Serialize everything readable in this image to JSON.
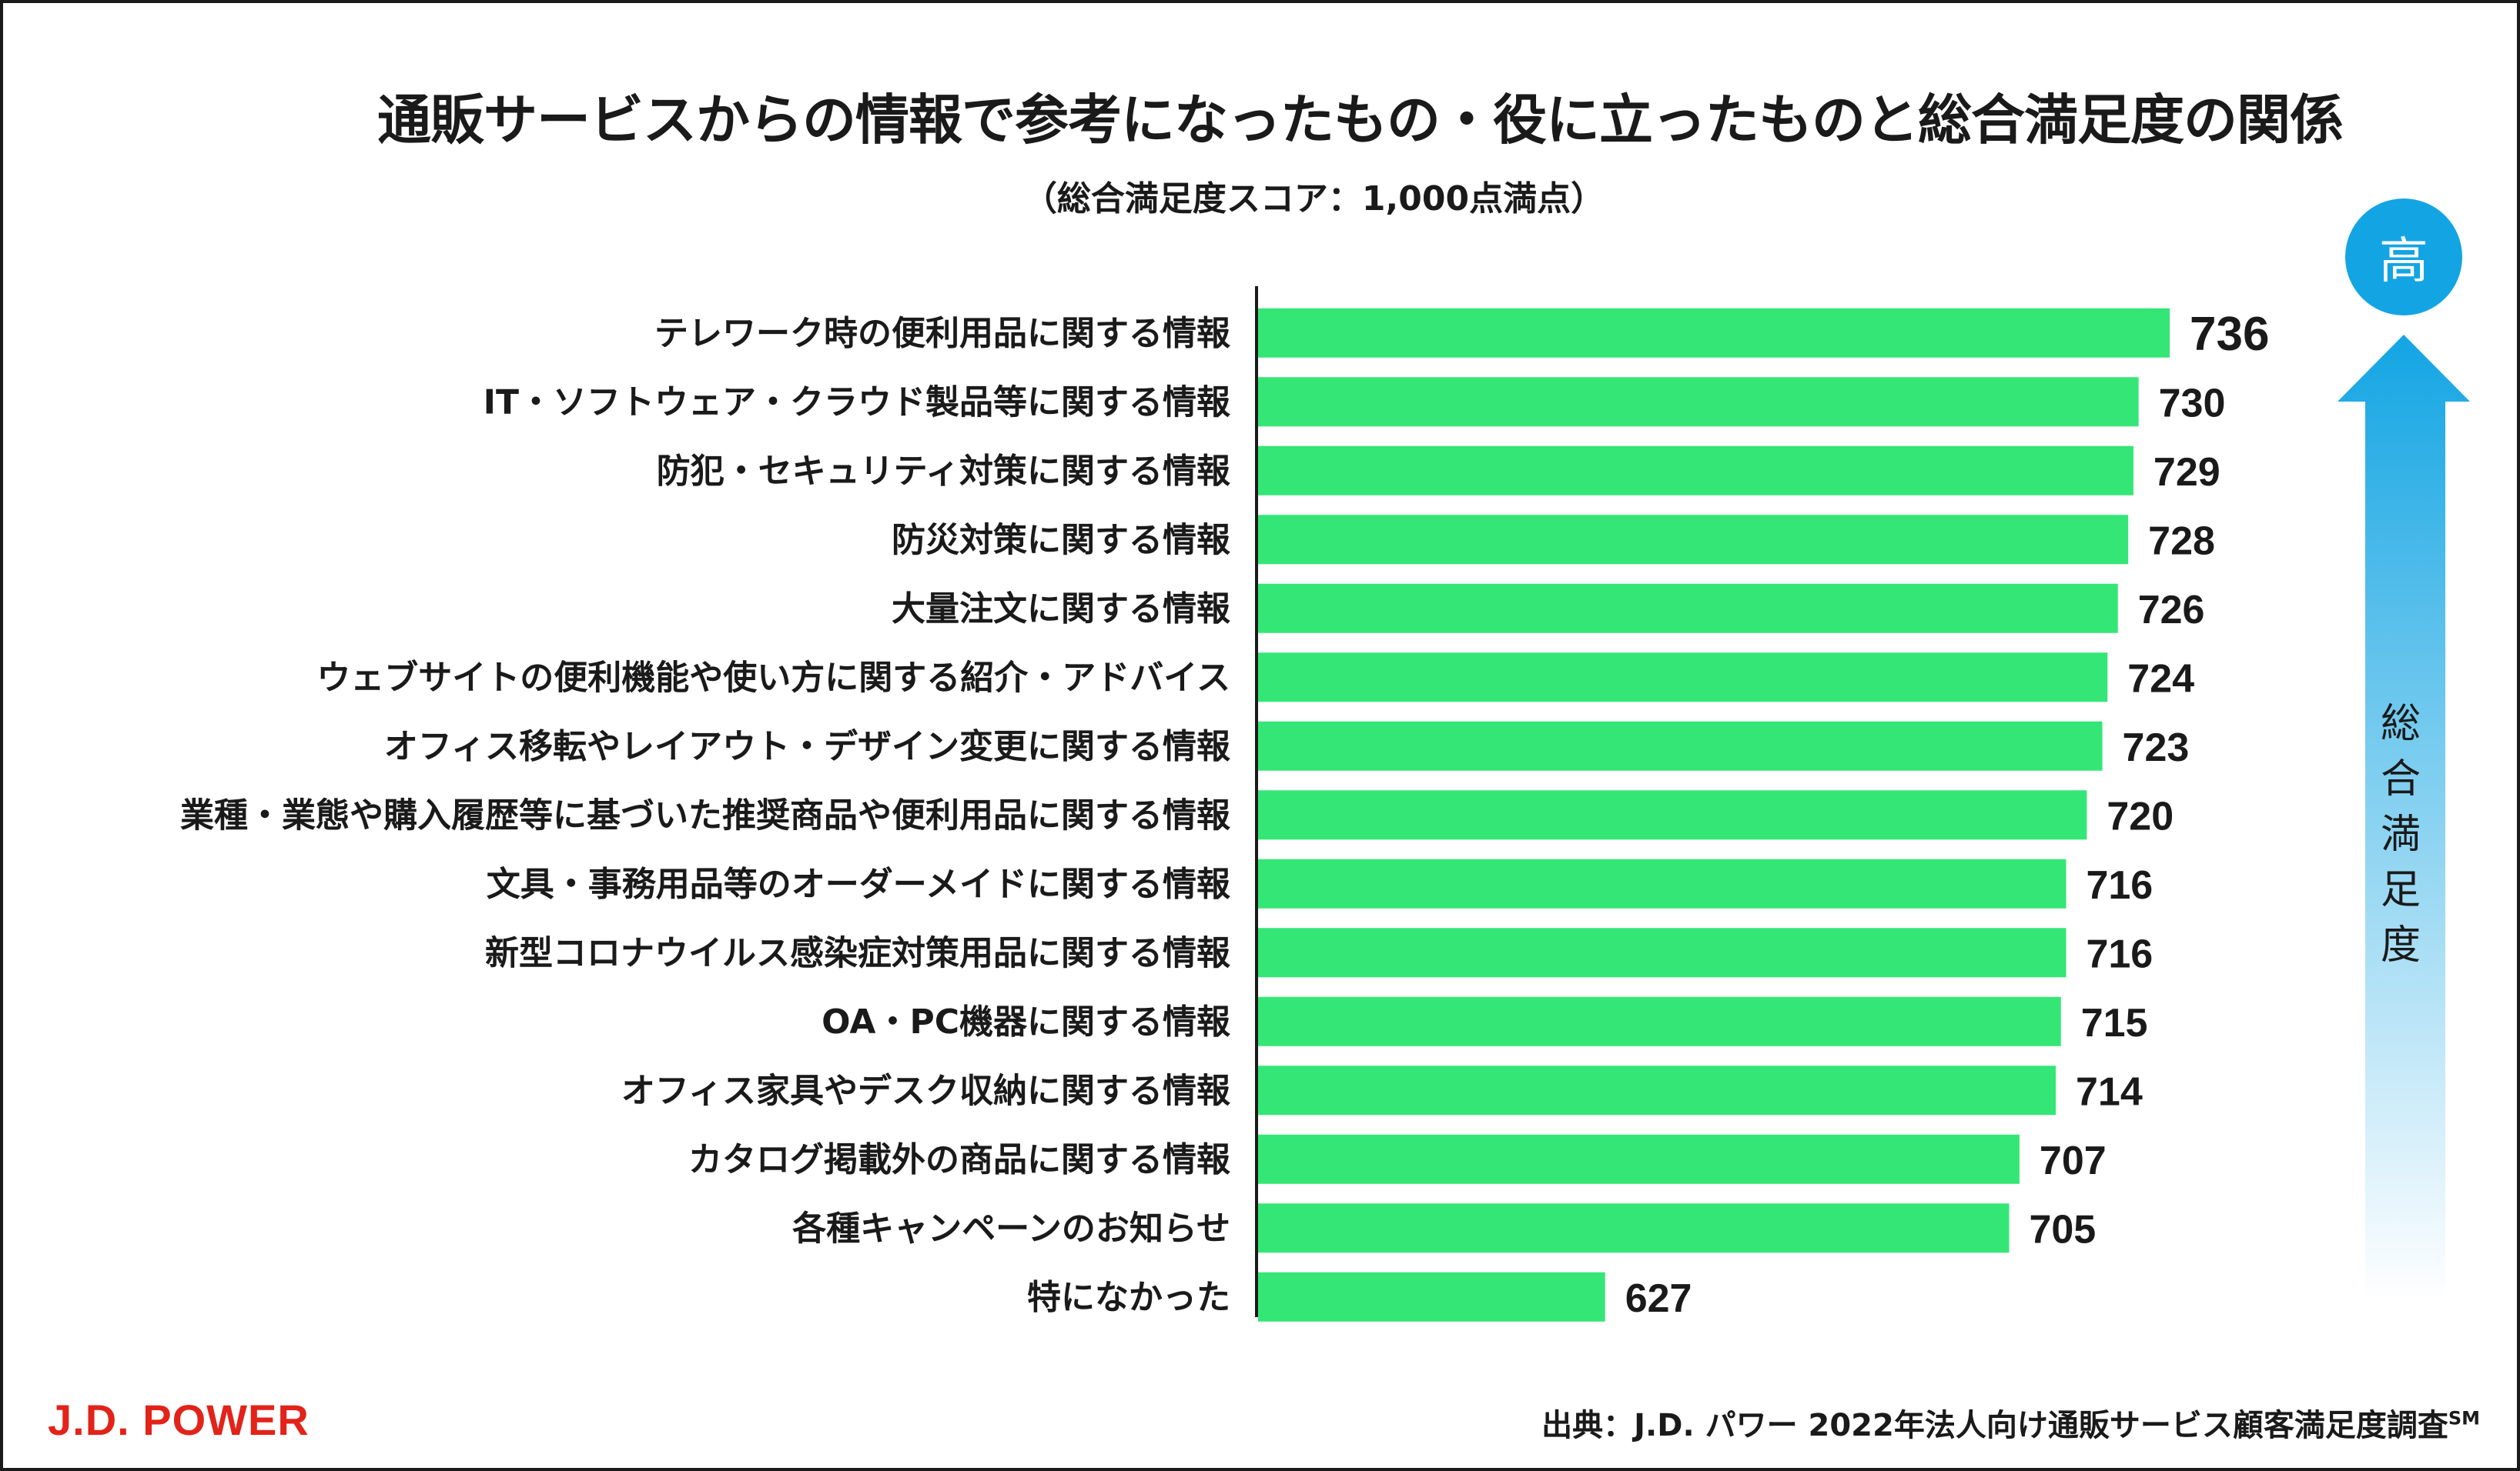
{
  "chart_data": {
    "type": "bar",
    "orientation": "horizontal",
    "title": "通販サービスからの情報で参考になったもの・役に立ったものと総合満足度の関係",
    "subtitle": "（総合満足度スコア：1,000点満点）",
    "categories": [
      "テレワーク時の便利用品に関する情報",
      "IT・ソフトウェア・クラウド製品等に関する情報",
      "防犯・セキュリティ対策に関する情報",
      "防災対策に関する情報",
      "大量注文に関する情報",
      "ウェブサイトの便利機能や使い方に関する紹介・アドバイス",
      "オフィス移転やレイアウト・デザイン変更に関する情報",
      "業種・業態や購入履歴等に基づいた推奨商品や便利用品に関する情報",
      "文具・事務用品等のオーダーメイドに関する情報",
      "新型コロナウイルス感染症対策用品に関する情報",
      "OA・PC機器に関する情報",
      "オフィス家具やデスク収納に関する情報",
      "カタログ掲載外の商品に関する情報",
      "各種キャンペーンのお知らせ",
      "特になかった"
    ],
    "values": [
      736,
      730,
      729,
      728,
      726,
      724,
      723,
      720,
      716,
      716,
      715,
      714,
      707,
      705,
      627
    ],
    "bar_color": "#34e676",
    "axis_min": 560,
    "grid": false,
    "legend": "none"
  },
  "indicator": {
    "badge_text": "高",
    "label_chars": [
      "総",
      "合",
      "満",
      "足",
      "度"
    ],
    "badge_color": "#13a5e3",
    "arrow_color": "#13a5e3"
  },
  "footer": {
    "logo": "J.D. POWER",
    "source_text": "出典：J.D. パワー 2022年法人向け通販サービス顧客満足度調査",
    "source_sup": "SM"
  }
}
